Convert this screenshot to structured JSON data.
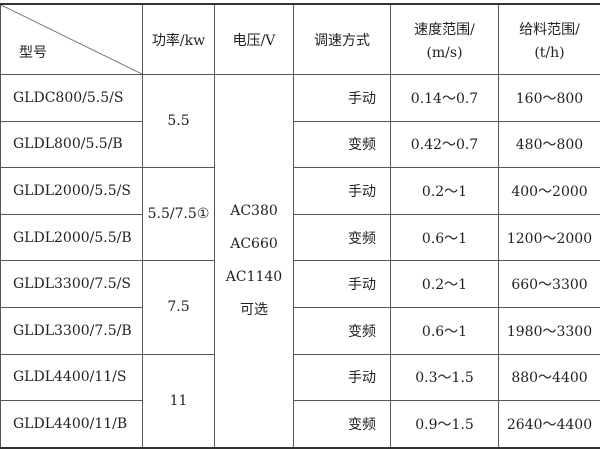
{
  "header": {
    "model": "型号",
    "power": "功率/kw",
    "voltage": "电压/V",
    "speed_mode": "调速方式",
    "speed_range": [
      "速度范围/",
      "(m/s)"
    ],
    "feed_range": [
      "给料范围/",
      "(t/h)"
    ]
  },
  "voltage_options": [
    "AC380",
    "AC660",
    "AC1140",
    "可选"
  ],
  "power_groups": [
    "5.5",
    "5.5/7.5①",
    "7.5",
    "11"
  ],
  "rows": [
    {
      "model": "GLDC800/5.5/S",
      "mode": "手动",
      "speed": "0.14～0.7",
      "feed": "160～800"
    },
    {
      "model": "GLDL800/5.5/B",
      "mode": "变频",
      "speed": "0.42～0.7",
      "feed": "480～800"
    },
    {
      "model": "GLDL2000/5.5/S",
      "mode": "手动",
      "speed": "0.2～1",
      "feed": "400～2000"
    },
    {
      "model": "GLDL2000/5.5/B",
      "mode": "变频",
      "speed": "0.6～1",
      "feed": "1200～2000"
    },
    {
      "model": "GLDL3300/7.5/S",
      "mode": "手动",
      "speed": "0.2～1",
      "feed": "660～3300"
    },
    {
      "model": "GLDL3300/7.5/B",
      "mode": "变频",
      "speed": "0.6～1",
      "feed": "1980～3300"
    },
    {
      "model": "GLDL4400/11/S",
      "mode": "手动",
      "speed": "0.3～1.5",
      "feed": "880～4400"
    },
    {
      "model": "GLDL4400/11/B",
      "mode": "变频",
      "speed": "0.9～1.5",
      "feed": "2640～4400"
    }
  ]
}
